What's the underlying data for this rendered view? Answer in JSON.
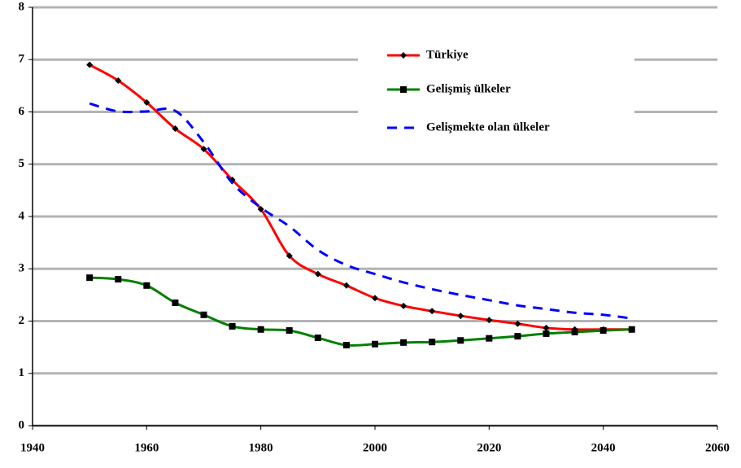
{
  "chart_data": {
    "type": "line",
    "x": [
      1950,
      1955,
      1960,
      1965,
      1970,
      1975,
      1980,
      1985,
      1990,
      1995,
      2000,
      2005,
      2010,
      2015,
      2020,
      2025,
      2030,
      2035,
      2040,
      2045
    ],
    "series": [
      {
        "name": "Türkiye",
        "color": "#ff0000",
        "marker": "diamond",
        "dashed": false,
        "values": [
          6.9,
          6.6,
          6.18,
          5.68,
          5.29,
          4.7,
          4.14,
          3.25,
          2.9,
          2.68,
          2.44,
          2.29,
          2.19,
          2.1,
          2.02,
          1.95,
          1.87,
          1.84,
          1.84,
          1.84
        ]
      },
      {
        "name": "Gelişmiş ülkeler",
        "color": "#008000",
        "marker": "square",
        "dashed": false,
        "values": [
          2.83,
          2.8,
          2.68,
          2.35,
          2.12,
          1.9,
          1.84,
          1.82,
          1.68,
          1.54,
          1.56,
          1.59,
          1.6,
          1.63,
          1.67,
          1.71,
          1.76,
          1.79,
          1.82,
          1.84
        ]
      },
      {
        "name": "Gelişmekte olan ülkeler",
        "color": "#0000ff",
        "marker": null,
        "dashed": true,
        "values": [
          6.16,
          6.01,
          6.01,
          6.02,
          5.42,
          4.64,
          4.17,
          3.81,
          3.36,
          3.07,
          2.9,
          2.74,
          2.61,
          2.5,
          2.4,
          2.3,
          2.23,
          2.16,
          2.12,
          2.05
        ]
      }
    ],
    "xlim": [
      1940,
      2060
    ],
    "xticks": [
      1940,
      1960,
      1980,
      2000,
      2020,
      2040,
      2060
    ],
    "ylim": [
      0,
      8
    ],
    "yticks": [
      0,
      1,
      2,
      3,
      4,
      5,
      6,
      7,
      8
    ],
    "grid": true
  }
}
